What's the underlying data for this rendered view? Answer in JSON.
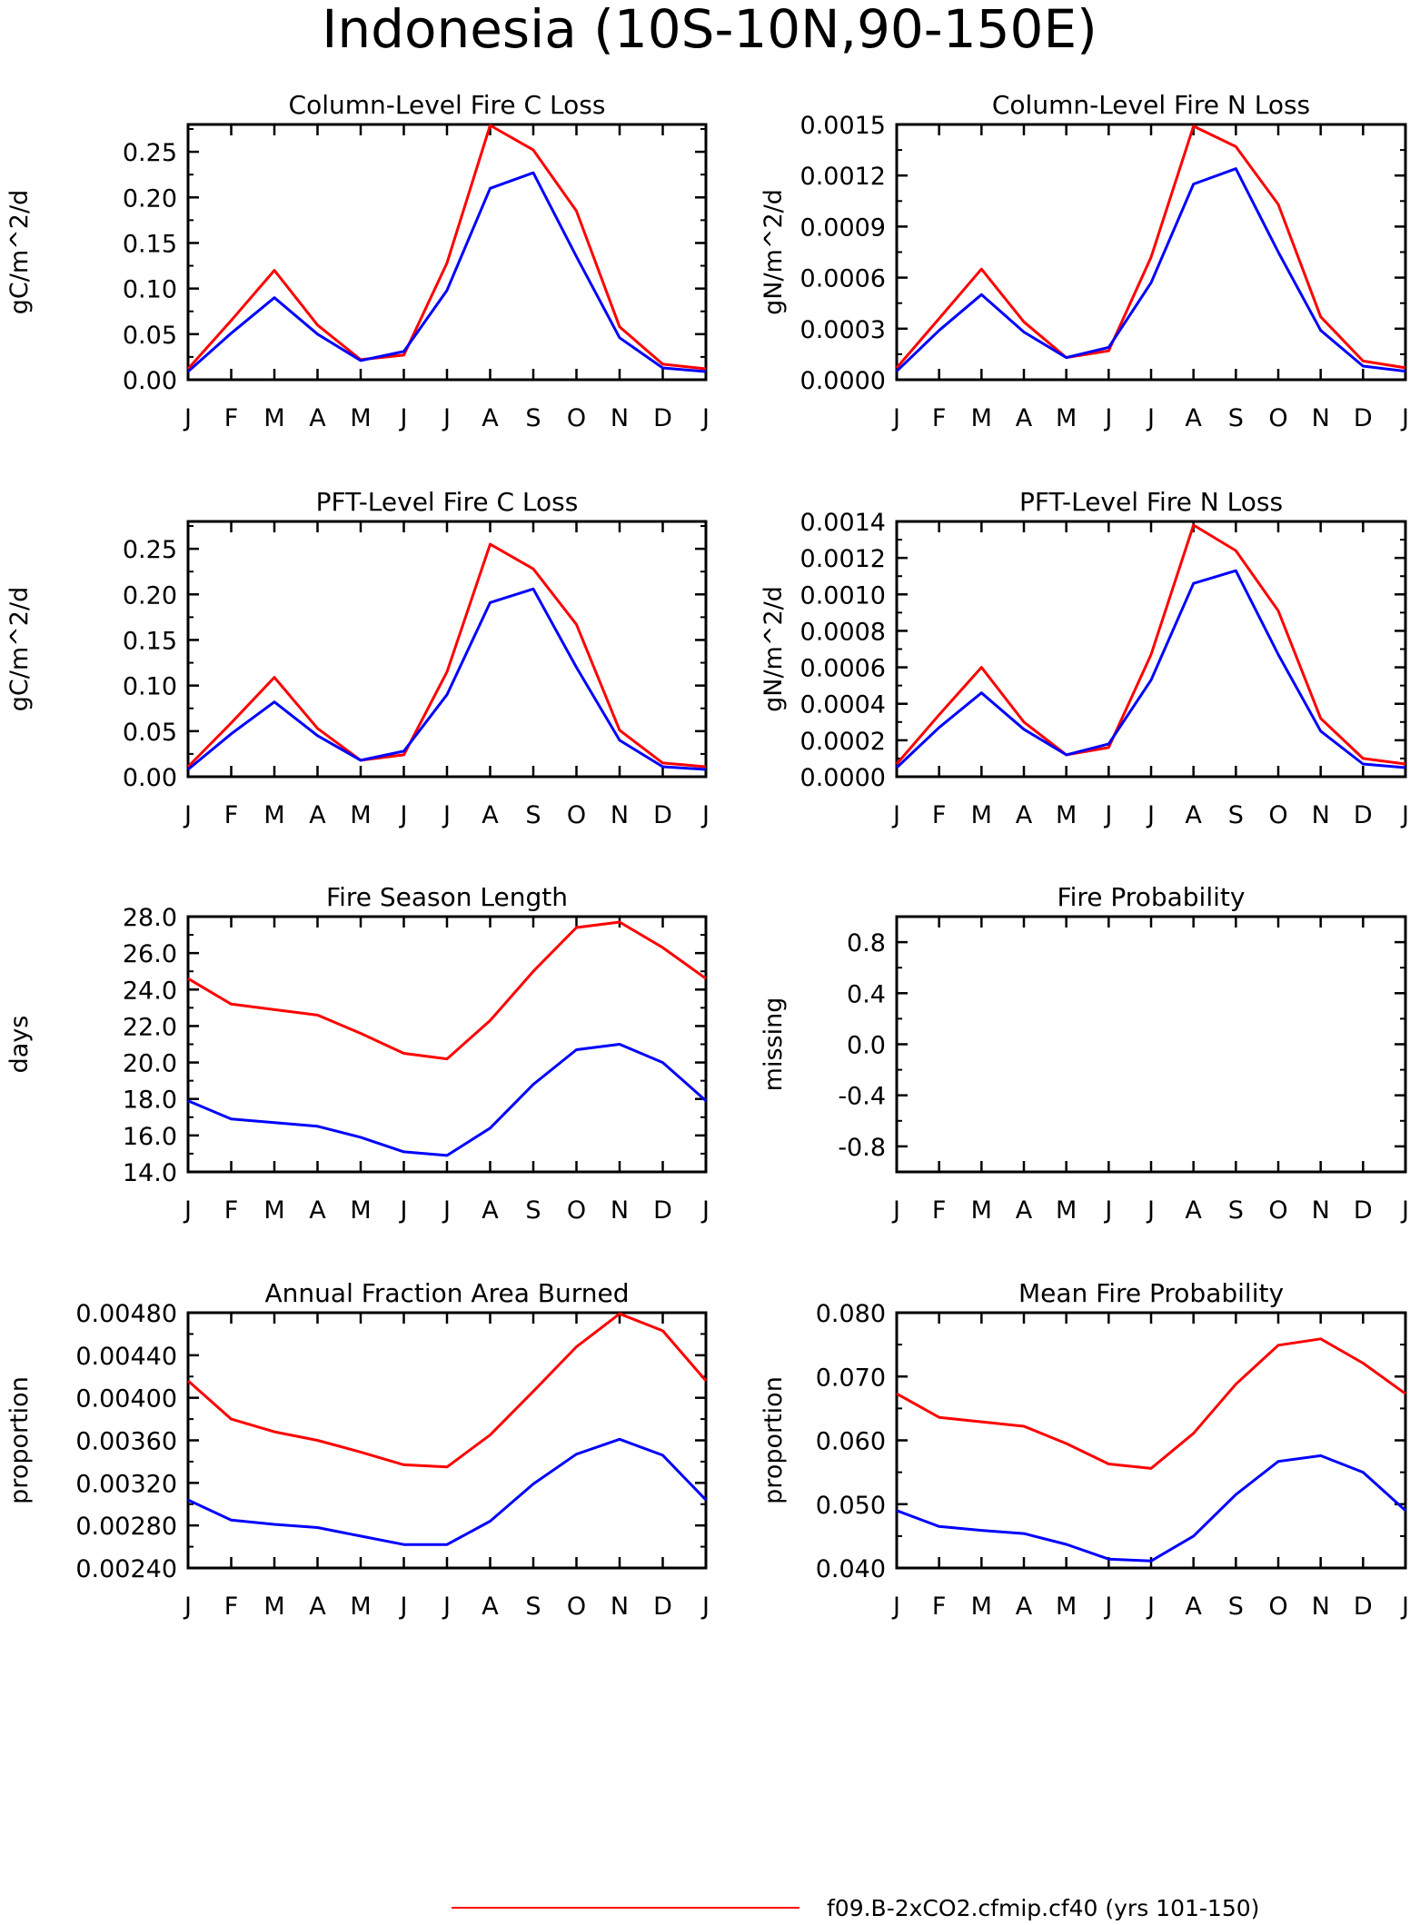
{
  "title": "Indonesia (10S-10N,90-150E)",
  "legend": [
    {
      "label": "f09.B-2xCO2.cfmip.cf40 (yrs 101-150)",
      "color": "#ff0000"
    }
  ],
  "chart_data": [
    {
      "type": "line",
      "title": "Column-Level Fire C Loss",
      "ylabel": "gC/m^2/d",
      "x": [
        "J",
        "F",
        "M",
        "A",
        "M",
        "J",
        "J",
        "A",
        "S",
        "O",
        "N",
        "D",
        "J"
      ],
      "ylim": [
        0,
        0.28
      ],
      "yticks": [
        "0.00",
        "0.05",
        "0.10",
        "0.15",
        "0.20",
        "0.25"
      ],
      "series": [
        {
          "color": "#ff0000",
          "values": [
            0.012,
            0.065,
            0.12,
            0.06,
            0.022,
            0.027,
            0.128,
            0.279,
            0.252,
            0.185,
            0.058,
            0.017,
            0.012
          ]
        },
        {
          "color": "#0000ff",
          "values": [
            0.009,
            0.051,
            0.09,
            0.05,
            0.021,
            0.031,
            0.098,
            0.21,
            0.227,
            0.135,
            0.046,
            0.013,
            0.009
          ]
        }
      ]
    },
    {
      "type": "line",
      "title": "Column-Level Fire N Loss",
      "ylabel": "gN/m^2/d",
      "x": [
        "J",
        "F",
        "M",
        "A",
        "M",
        "J",
        "J",
        "A",
        "S",
        "O",
        "N",
        "D",
        "J"
      ],
      "ylim": [
        0,
        0.0015
      ],
      "yticks": [
        "0.0000",
        "0.0003",
        "0.0006",
        "0.0009",
        "0.0012",
        "0.0015"
      ],
      "series": [
        {
          "color": "#ff0000",
          "values": [
            7e-05,
            0.00036,
            0.00065,
            0.00034,
            0.00013,
            0.00017,
            0.00072,
            0.00149,
            0.00137,
            0.00103,
            0.00037,
            0.00011,
            7e-05
          ]
        },
        {
          "color": "#0000ff",
          "values": [
            5e-05,
            0.00029,
            0.0005,
            0.00028,
            0.00013,
            0.00019,
            0.00057,
            0.00115,
            0.00124,
            0.00075,
            0.00029,
            8e-05,
            5e-05
          ]
        }
      ]
    },
    {
      "type": "line",
      "title": "PFT-Level Fire C Loss",
      "ylabel": "gC/m^2/d",
      "x": [
        "J",
        "F",
        "M",
        "A",
        "M",
        "J",
        "J",
        "A",
        "S",
        "O",
        "N",
        "D",
        "J"
      ],
      "ylim": [
        0,
        0.28
      ],
      "yticks": [
        "0.00",
        "0.05",
        "0.10",
        "0.15",
        "0.20",
        "0.25"
      ],
      "series": [
        {
          "color": "#ff0000",
          "values": [
            0.011,
            0.059,
            0.109,
            0.053,
            0.018,
            0.024,
            0.115,
            0.255,
            0.228,
            0.167,
            0.051,
            0.015,
            0.011
          ]
        },
        {
          "color": "#0000ff",
          "values": [
            0.008,
            0.047,
            0.082,
            0.045,
            0.018,
            0.028,
            0.09,
            0.191,
            0.206,
            0.12,
            0.04,
            0.011,
            0.008
          ]
        }
      ]
    },
    {
      "type": "line",
      "title": "PFT-Level Fire N Loss",
      "ylabel": "gN/m^2/d",
      "x": [
        "J",
        "F",
        "M",
        "A",
        "M",
        "J",
        "J",
        "A",
        "S",
        "O",
        "N",
        "D",
        "J"
      ],
      "ylim": [
        0,
        0.0014
      ],
      "yticks": [
        "0.0000",
        "0.0002",
        "0.0004",
        "0.0006",
        "0.0008",
        "0.0010",
        "0.0012",
        "0.0014"
      ],
      "series": [
        {
          "color": "#ff0000",
          "values": [
            7e-05,
            0.00034,
            0.0006,
            0.0003,
            0.00012,
            0.00016,
            0.00067,
            0.00138,
            0.00124,
            0.00091,
            0.00032,
            0.0001,
            7e-05
          ]
        },
        {
          "color": "#0000ff",
          "values": [
            5e-05,
            0.00027,
            0.00046,
            0.00026,
            0.00012,
            0.00018,
            0.00053,
            0.00106,
            0.00113,
            0.00067,
            0.00025,
            7e-05,
            5e-05
          ]
        }
      ]
    },
    {
      "type": "line",
      "title": "Fire Season Length",
      "ylabel": "days",
      "x": [
        "J",
        "F",
        "M",
        "A",
        "M",
        "J",
        "J",
        "A",
        "S",
        "O",
        "N",
        "D",
        "J"
      ],
      "ylim": [
        14,
        28
      ],
      "yticks": [
        "14.0",
        "16.0",
        "18.0",
        "20.0",
        "22.0",
        "24.0",
        "26.0",
        "28.0"
      ],
      "series": [
        {
          "color": "#ff0000",
          "values": [
            24.6,
            23.2,
            22.9,
            22.6,
            21.6,
            20.5,
            20.2,
            22.3,
            25.0,
            27.4,
            27.7,
            26.3,
            24.6
          ]
        },
        {
          "color": "#0000ff",
          "values": [
            17.9,
            16.9,
            16.7,
            16.5,
            15.9,
            15.1,
            14.9,
            16.4,
            18.8,
            20.7,
            21.0,
            20.0,
            17.9
          ]
        }
      ]
    },
    {
      "type": "line",
      "title": "Fire Probability",
      "ylabel": "missing",
      "x": [
        "J",
        "F",
        "M",
        "A",
        "M",
        "J",
        "J",
        "A",
        "S",
        "O",
        "N",
        "D",
        "J"
      ],
      "ylim": [
        -1.0,
        1.0
      ],
      "yticks": [
        "-0.8",
        "-0.4",
        "0.0",
        "0.4",
        "0.8"
      ],
      "series": []
    },
    {
      "type": "line",
      "title": "Annual Fraction Area Burned",
      "ylabel": "proportion",
      "x": [
        "J",
        "F",
        "M",
        "A",
        "M",
        "J",
        "J",
        "A",
        "S",
        "O",
        "N",
        "D",
        "J"
      ],
      "ylim": [
        0.0024,
        0.0048
      ],
      "yticks": [
        "0.00240",
        "0.00280",
        "0.00320",
        "0.00360",
        "0.00400",
        "0.00440",
        "0.00480"
      ],
      "series": [
        {
          "color": "#ff0000",
          "values": [
            0.00416,
            0.0038,
            0.00368,
            0.0036,
            0.00349,
            0.00337,
            0.00335,
            0.00365,
            0.00406,
            0.00448,
            0.00479,
            0.00463,
            0.00416
          ]
        },
        {
          "color": "#0000ff",
          "values": [
            0.00304,
            0.00285,
            0.00281,
            0.00278,
            0.0027,
            0.00262,
            0.00262,
            0.00284,
            0.00319,
            0.00347,
            0.00361,
            0.00346,
            0.00304
          ]
        }
      ]
    },
    {
      "type": "line",
      "title": "Mean Fire Probability",
      "ylabel": "proportion",
      "x": [
        "J",
        "F",
        "M",
        "A",
        "M",
        "J",
        "J",
        "A",
        "S",
        "O",
        "N",
        "D",
        "J"
      ],
      "ylim": [
        0.04,
        0.08
      ],
      "yticks": [
        "0.040",
        "0.050",
        "0.060",
        "0.070",
        "0.080"
      ],
      "series": [
        {
          "color": "#ff0000",
          "values": [
            0.0673,
            0.0636,
            0.0629,
            0.0622,
            0.0595,
            0.0563,
            0.0556,
            0.0611,
            0.0688,
            0.0749,
            0.0759,
            0.0721,
            0.0673
          ]
        },
        {
          "color": "#0000ff",
          "values": [
            0.049,
            0.0465,
            0.0459,
            0.0454,
            0.0437,
            0.0414,
            0.0411,
            0.045,
            0.0515,
            0.0567,
            0.0576,
            0.055,
            0.049
          ]
        }
      ]
    }
  ]
}
